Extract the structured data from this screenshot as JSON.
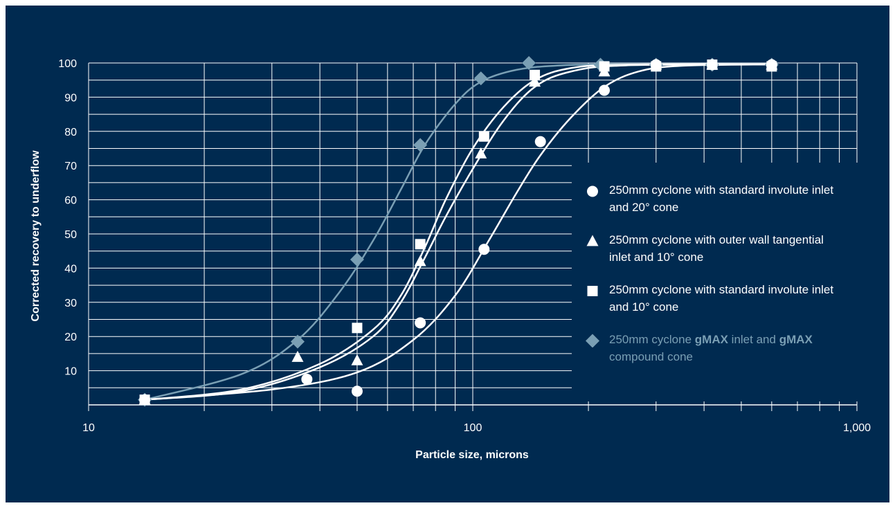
{
  "chart_data": {
    "type": "scatter",
    "xlabel": "Particle size, microns",
    "ylabel": "Corrected recovery to underflow",
    "xscale": "log",
    "xlim": [
      10,
      1000
    ],
    "ylim": [
      0,
      100
    ],
    "x_ticks": [
      10,
      100,
      1000
    ],
    "x_tick_labels": [
      "10",
      "100",
      "1,000"
    ],
    "y_ticks": [
      10,
      20,
      30,
      40,
      50,
      60,
      70,
      80,
      90,
      100
    ],
    "grid": true,
    "legend_position": "right",
    "series": [
      {
        "name": "250mm cyclone with standard involute inlet and 20° cone",
        "marker": "circle",
        "color": "#ffffff",
        "points": [
          [
            14,
            1.5
          ],
          [
            37,
            7.5
          ],
          [
            50,
            4
          ],
          [
            73,
            24
          ],
          [
            107,
            45.5
          ],
          [
            150,
            77
          ],
          [
            220,
            92
          ],
          [
            300,
            99.5
          ],
          [
            420,
            99.5
          ],
          [
            600,
            99.5
          ]
        ],
        "curve": [
          [
            14,
            1.5
          ],
          [
            30,
            4.5
          ],
          [
            50,
            9.5
          ],
          [
            70,
            19
          ],
          [
            90,
            32
          ],
          [
            110,
            48
          ],
          [
            130,
            62
          ],
          [
            150,
            73
          ],
          [
            180,
            84
          ],
          [
            220,
            93
          ],
          [
            270,
            97.5
          ],
          [
            350,
            99.2
          ],
          [
            600,
            99.6
          ]
        ]
      },
      {
        "name": "250mm cyclone with outer wall tangential inlet and 10° cone",
        "marker": "triangle",
        "color": "#ffffff",
        "points": [
          [
            14,
            1.5
          ],
          [
            35,
            14
          ],
          [
            50,
            13
          ],
          [
            73,
            42
          ],
          [
            105,
            73.5
          ],
          [
            145,
            94.5
          ],
          [
            220,
            97.5
          ],
          [
            300,
            99.5
          ],
          [
            420,
            99.5
          ],
          [
            600,
            99.5
          ]
        ],
        "curve": [
          [
            14,
            1.5
          ],
          [
            25,
            4
          ],
          [
            40,
            11
          ],
          [
            55,
            20
          ],
          [
            65,
            30
          ],
          [
            75,
            43
          ],
          [
            85,
            55
          ],
          [
            100,
            69
          ],
          [
            120,
            83
          ],
          [
            145,
            93
          ],
          [
            180,
            97.5
          ],
          [
            250,
            99.3
          ],
          [
            600,
            99.6
          ]
        ]
      },
      {
        "name": "250mm cyclone with standard involute inlet and 10° cone",
        "marker": "square",
        "color": "#ffffff",
        "points": [
          [
            14,
            1.5
          ],
          [
            50,
            22.5
          ],
          [
            73,
            47
          ],
          [
            107,
            78.5
          ],
          [
            145,
            96.5
          ],
          [
            220,
            99
          ],
          [
            300,
            99
          ],
          [
            420,
            99.5
          ],
          [
            600,
            99
          ]
        ],
        "curve": [
          [
            14,
            1.5
          ],
          [
            25,
            4.5
          ],
          [
            40,
            12
          ],
          [
            55,
            22
          ],
          [
            65,
            32
          ],
          [
            75,
            46
          ],
          [
            85,
            60
          ],
          [
            100,
            75
          ],
          [
            120,
            87
          ],
          [
            145,
            95
          ],
          [
            180,
            98.5
          ],
          [
            250,
            99.5
          ],
          [
            600,
            99.6
          ]
        ]
      },
      {
        "name": "250mm cyclone gMAX inlet and gMAX compound cone",
        "marker": "diamond",
        "color": "#7a9fb4",
        "points": [
          [
            14,
            1.5
          ],
          [
            35,
            18.5
          ],
          [
            50,
            42.5
          ],
          [
            73,
            76
          ],
          [
            105,
            95.5
          ],
          [
            140,
            100
          ],
          [
            215,
            99.5
          ],
          [
            300,
            99.5
          ],
          [
            420,
            99.5
          ],
          [
            600,
            99.5
          ]
        ],
        "curve": [
          [
            14,
            1.5
          ],
          [
            25,
            9
          ],
          [
            35,
            19
          ],
          [
            45,
            33
          ],
          [
            55,
            48
          ],
          [
            65,
            63
          ],
          [
            75,
            76
          ],
          [
            90,
            88
          ],
          [
            105,
            94.5
          ],
          [
            130,
            98
          ],
          [
            170,
            99.3
          ],
          [
            250,
            99.6
          ],
          [
            600,
            99.6
          ]
        ]
      }
    ]
  },
  "legend": [
    {
      "parts": [
        {
          "text": "250mm cyclone with standard involute inlet and 20° cone",
          "bold": false
        }
      ]
    },
    {
      "parts": [
        {
          "text": "250mm cyclone with outer wall tangential inlet and 10° cone",
          "bold": false
        }
      ]
    },
    {
      "parts": [
        {
          "text": "250mm cyclone with standard involute inlet and 10° cone",
          "bold": false
        }
      ]
    },
    {
      "parts": [
        {
          "text": "250mm cyclone ",
          "bold": false
        },
        {
          "text": "gMAX",
          "bold": true
        },
        {
          "text": " inlet and ",
          "bold": false
        },
        {
          "text": "gMAX",
          "bold": true
        },
        {
          "text": " compound cone",
          "bold": false
        }
      ]
    }
  ],
  "colors": {
    "background": "#002a50",
    "foreground": "#ffffff",
    "gmax": "#7a9fb4"
  }
}
